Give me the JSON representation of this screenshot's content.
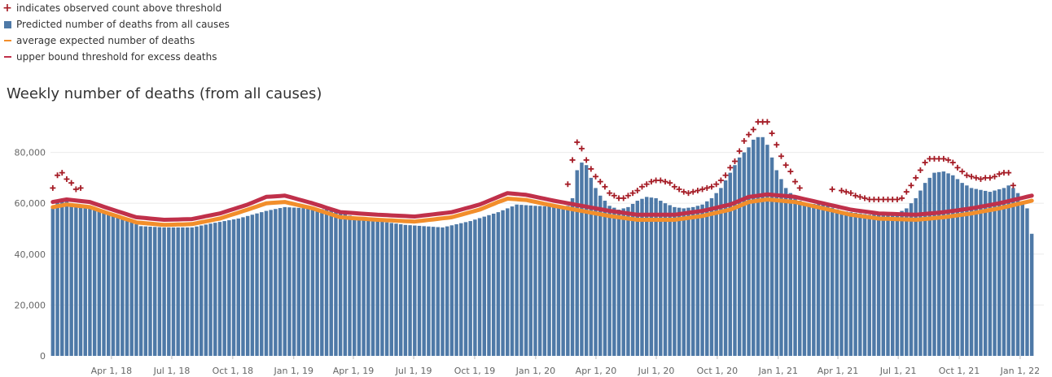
{
  "legend": {
    "items": [
      {
        "label": "indicates observed count above threshold",
        "icon": "plus-icon",
        "color": "#a51c26"
      },
      {
        "label": " Predicted number of deaths from all causes",
        "icon": "square-icon",
        "color": "#4e79a7"
      },
      {
        "label": "average expected number of deaths",
        "icon": "line-icon",
        "color": "#f28e2b"
      },
      {
        "label": "upper bound threshold for excess deaths",
        "icon": "line-icon",
        "color": "#c0304a"
      }
    ]
  },
  "chart_data": {
    "type": "bar",
    "title": "Weekly number of deaths (from all causes)",
    "xlabel": "",
    "ylabel": "",
    "ylim": [
      0,
      92000
    ],
    "yticks": [
      0,
      20000,
      40000,
      60000,
      80000
    ],
    "ytick_labels": [
      "0",
      "20,000",
      "40,000",
      "60,000",
      "80,000"
    ],
    "xtick_labels": [
      "Apr 1, 18",
      "Jul 1, 18",
      "Oct 1, 18",
      "Jan 1, 19",
      "Apr 1, 19",
      "Jul 1, 19",
      "Oct 1, 19",
      "Jan 1, 20",
      "Apr 1, 20",
      "Jul 1, 20",
      "Oct 1, 20",
      "Jan 1, 21",
      "Apr 1, 21",
      "Jul 1, 21",
      "Oct 1, 21",
      "Jan 1, 22"
    ],
    "first_week": "2017-12-30",
    "grid": "horizontal",
    "series": [
      {
        "name": " Predicted number of deaths from all causes",
        "role": "bars",
        "color": "#4e79a7",
        "anchors": [
          [
            0,
            58000
          ],
          [
            1,
            60500
          ],
          [
            2,
            61200
          ],
          [
            3,
            60800
          ],
          [
            4,
            60000
          ],
          [
            5,
            59500
          ],
          [
            6,
            59000
          ],
          [
            8,
            58200
          ],
          [
            12,
            56000
          ],
          [
            16,
            53500
          ],
          [
            19,
            51000
          ],
          [
            24,
            50500
          ],
          [
            30,
            50500
          ],
          [
            34,
            52000
          ],
          [
            40,
            54000
          ],
          [
            46,
            57000
          ],
          [
            50,
            58500
          ],
          [
            60,
            57500
          ],
          [
            66,
            54000
          ],
          [
            76,
            51500
          ],
          [
            84,
            50500
          ],
          [
            90,
            53000
          ],
          [
            96,
            56500
          ],
          [
            100,
            59500
          ],
          [
            104,
            59000
          ],
          [
            110,
            58500
          ],
          [
            111,
            59000
          ],
          [
            112,
            62000
          ],
          [
            113,
            73000
          ],
          [
            114,
            76000
          ],
          [
            115,
            75000
          ],
          [
            116,
            70000
          ],
          [
            117,
            66000
          ],
          [
            118,
            63000
          ],
          [
            120,
            59000
          ],
          [
            122,
            57500
          ],
          [
            124,
            58500
          ],
          [
            126,
            61000
          ],
          [
            128,
            62500
          ],
          [
            130,
            62000
          ],
          [
            132,
            60000
          ],
          [
            134,
            58500
          ],
          [
            136,
            58000
          ],
          [
            138,
            58500
          ],
          [
            140,
            59500
          ],
          [
            142,
            62000
          ],
          [
            144,
            66000
          ],
          [
            146,
            72000
          ],
          [
            148,
            78000
          ],
          [
            150,
            82000
          ],
          [
            151,
            85000
          ],
          [
            152,
            86000
          ],
          [
            153,
            86000
          ],
          [
            154,
            83000
          ],
          [
            155,
            78000
          ],
          [
            156,
            73000
          ],
          [
            158,
            66000
          ],
          [
            160,
            62000
          ],
          [
            162,
            60000
          ],
          [
            166,
            59500
          ],
          [
            170,
            57000
          ],
          [
            176,
            55500
          ],
          [
            182,
            56000
          ],
          [
            184,
            58000
          ],
          [
            186,
            62000
          ],
          [
            188,
            68000
          ],
          [
            190,
            72000
          ],
          [
            192,
            72500
          ],
          [
            194,
            71000
          ],
          [
            196,
            68000
          ],
          [
            198,
            66000
          ],
          [
            202,
            64500
          ],
          [
            205,
            66000
          ],
          [
            206,
            67000
          ],
          [
            207,
            66000
          ],
          [
            208,
            64000
          ],
          [
            209,
            60000
          ],
          [
            210,
            58000
          ],
          [
            211,
            48000
          ]
        ]
      },
      {
        "name": "average expected number of deaths",
        "role": "line",
        "color": "#f28e2b",
        "anchors": [
          [
            0,
            58500
          ],
          [
            3,
            59500
          ],
          [
            8,
            58500
          ],
          [
            12,
            56000
          ],
          [
            18,
            52500
          ],
          [
            24,
            51500
          ],
          [
            30,
            51800
          ],
          [
            36,
            54000
          ],
          [
            42,
            57500
          ],
          [
            46,
            60000
          ],
          [
            50,
            60500
          ],
          [
            56,
            58000
          ],
          [
            62,
            54500
          ],
          [
            70,
            53500
          ],
          [
            78,
            52800
          ],
          [
            86,
            54500
          ],
          [
            92,
            57500
          ],
          [
            96,
            60500
          ],
          [
            98,
            61800
          ],
          [
            102,
            61300
          ],
          [
            108,
            59000
          ],
          [
            114,
            57000
          ],
          [
            120,
            55000
          ],
          [
            126,
            53500
          ],
          [
            134,
            53500
          ],
          [
            140,
            55000
          ],
          [
            146,
            57500
          ],
          [
            150,
            60500
          ],
          [
            154,
            61500
          ],
          [
            160,
            60500
          ],
          [
            166,
            58000
          ],
          [
            172,
            55500
          ],
          [
            178,
            54000
          ],
          [
            186,
            53500
          ],
          [
            192,
            54500
          ],
          [
            198,
            56000
          ],
          [
            204,
            58000
          ],
          [
            211,
            61000
          ]
        ]
      },
      {
        "name": "upper bound threshold for excess deaths",
        "role": "line",
        "color": "#c0304a",
        "anchors": [
          [
            0,
            60500
          ],
          [
            3,
            61500
          ],
          [
            8,
            60500
          ],
          [
            12,
            58000
          ],
          [
            18,
            54500
          ],
          [
            24,
            53500
          ],
          [
            30,
            53800
          ],
          [
            36,
            56000
          ],
          [
            42,
            59500
          ],
          [
            46,
            62500
          ],
          [
            50,
            63000
          ],
          [
            56,
            60000
          ],
          [
            62,
            56500
          ],
          [
            70,
            55500
          ],
          [
            78,
            54800
          ],
          [
            86,
            56500
          ],
          [
            92,
            59500
          ],
          [
            96,
            62500
          ],
          [
            98,
            64000
          ],
          [
            102,
            63300
          ],
          [
            108,
            61000
          ],
          [
            114,
            59000
          ],
          [
            120,
            57000
          ],
          [
            126,
            55500
          ],
          [
            134,
            55500
          ],
          [
            140,
            57000
          ],
          [
            146,
            59500
          ],
          [
            150,
            62500
          ],
          [
            154,
            63500
          ],
          [
            160,
            62500
          ],
          [
            166,
            60000
          ],
          [
            172,
            57500
          ],
          [
            178,
            56000
          ],
          [
            186,
            55500
          ],
          [
            192,
            56500
          ],
          [
            198,
            58000
          ],
          [
            204,
            60000
          ],
          [
            211,
            63000
          ]
        ]
      },
      {
        "name": "indicates observed count above threshold",
        "role": "markers",
        "color": "#a51c26",
        "points": [
          [
            0,
            66000
          ],
          [
            1,
            71000
          ],
          [
            2,
            72000
          ],
          [
            3,
            69500
          ],
          [
            4,
            68000
          ],
          [
            5,
            65500
          ],
          [
            6,
            66000
          ],
          [
            111,
            67500
          ],
          [
            112,
            77000
          ],
          [
            113,
            84000
          ],
          [
            114,
            81500
          ],
          [
            115,
            77000
          ],
          [
            116,
            73500
          ],
          [
            117,
            70500
          ],
          [
            118,
            68500
          ],
          [
            119,
            66500
          ],
          [
            120,
            64000
          ],
          [
            121,
            63000
          ],
          [
            122,
            62000
          ],
          [
            123,
            62000
          ],
          [
            124,
            63000
          ],
          [
            125,
            64000
          ],
          [
            126,
            65000
          ],
          [
            127,
            66500
          ],
          [
            128,
            67500
          ],
          [
            129,
            68500
          ],
          [
            130,
            69000
          ],
          [
            131,
            69000
          ],
          [
            132,
            68500
          ],
          [
            133,
            68000
          ],
          [
            134,
            66500
          ],
          [
            135,
            65500
          ],
          [
            136,
            64500
          ],
          [
            137,
            64000
          ],
          [
            138,
            64500
          ],
          [
            139,
            65000
          ],
          [
            140,
            65500
          ],
          [
            141,
            66000
          ],
          [
            142,
            66500
          ],
          [
            143,
            67500
          ],
          [
            144,
            69000
          ],
          [
            145,
            71000
          ],
          [
            146,
            74000
          ],
          [
            147,
            76500
          ],
          [
            148,
            80500
          ],
          [
            149,
            84500
          ],
          [
            150,
            87000
          ],
          [
            151,
            89000
          ],
          [
            152,
            92000
          ],
          [
            153,
            92000
          ],
          [
            154,
            92000
          ],
          [
            155,
            87500
          ],
          [
            156,
            83000
          ],
          [
            157,
            78500
          ],
          [
            158,
            75000
          ],
          [
            159,
            72500
          ],
          [
            160,
            68500
          ],
          [
            161,
            66000
          ],
          [
            168,
            65500
          ],
          [
            170,
            65000
          ],
          [
            171,
            64500
          ],
          [
            172,
            64000
          ],
          [
            173,
            63000
          ],
          [
            174,
            62500
          ],
          [
            175,
            62000
          ],
          [
            176,
            61500
          ],
          [
            177,
            61500
          ],
          [
            178,
            61500
          ],
          [
            179,
            61500
          ],
          [
            180,
            61500
          ],
          [
            181,
            61500
          ],
          [
            182,
            61500
          ],
          [
            183,
            62000
          ],
          [
            184,
            64500
          ],
          [
            185,
            67000
          ],
          [
            186,
            70000
          ],
          [
            187,
            73000
          ],
          [
            188,
            76000
          ],
          [
            189,
            77500
          ],
          [
            190,
            77500
          ],
          [
            191,
            77500
          ],
          [
            192,
            77500
          ],
          [
            193,
            77000
          ],
          [
            194,
            76000
          ],
          [
            195,
            74000
          ],
          [
            196,
            72500
          ],
          [
            197,
            71000
          ],
          [
            198,
            70500
          ],
          [
            199,
            70000
          ],
          [
            200,
            69500
          ],
          [
            201,
            70000
          ],
          [
            202,
            70000
          ],
          [
            203,
            70500
          ],
          [
            204,
            71500
          ],
          [
            205,
            72000
          ],
          [
            206,
            72000
          ],
          [
            207,
            67000
          ]
        ]
      }
    ]
  }
}
